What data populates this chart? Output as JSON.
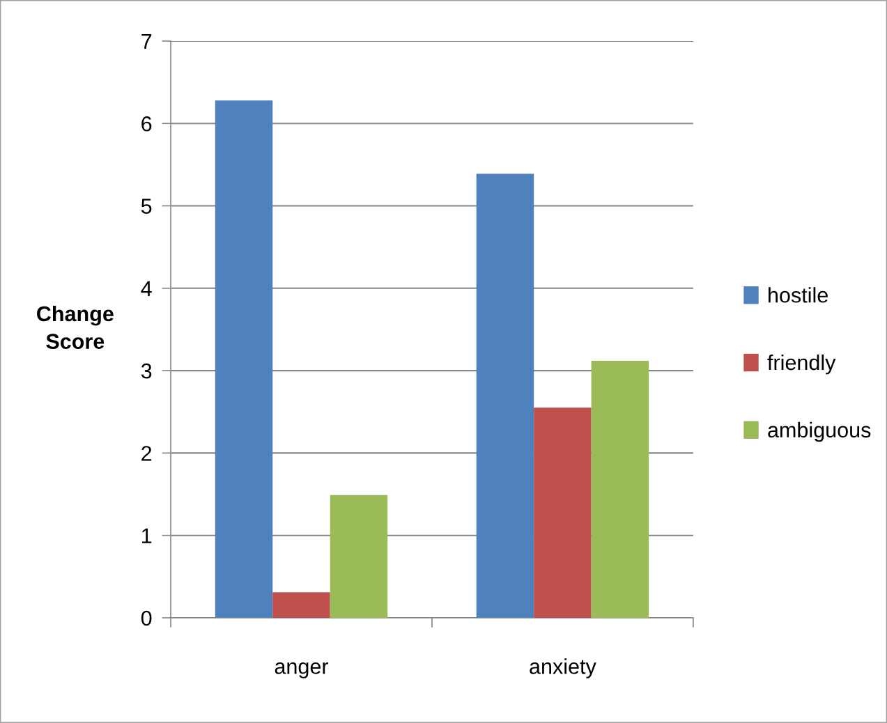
{
  "chart_data": {
    "type": "bar",
    "ylabel": "Change Score",
    "categories": [
      "anger",
      "anxiety"
    ],
    "series": [
      {
        "name": "hostile",
        "color": "#4f81bd",
        "values": [
          6.28,
          5.39
        ]
      },
      {
        "name": "friendly",
        "color": "#c0504d",
        "values": [
          0.31,
          2.55
        ]
      },
      {
        "name": "ambiguous",
        "color": "#9bbb59",
        "values": [
          1.49,
          3.12
        ]
      }
    ],
    "ylim": [
      0,
      7
    ],
    "yticks": [
      0,
      1,
      2,
      3,
      4,
      5,
      6,
      7
    ],
    "grid": "y",
    "legend": "right"
  }
}
